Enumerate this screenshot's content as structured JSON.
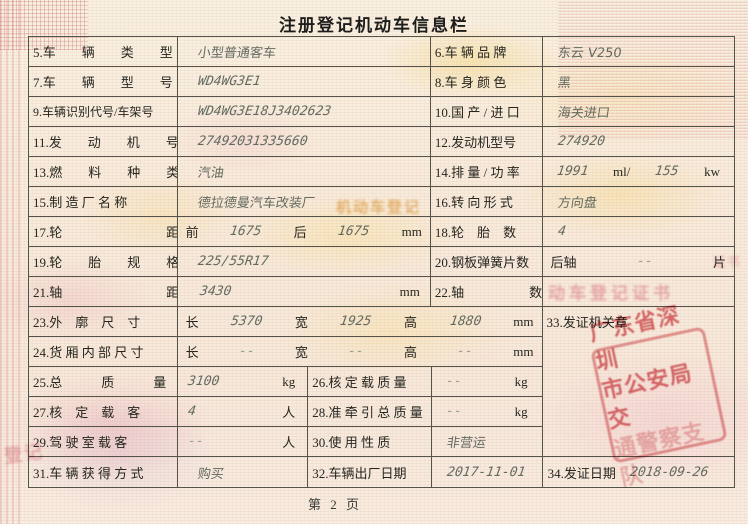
{
  "title": "注册登记机动车信息栏",
  "footer": {
    "page": "第 2 页"
  },
  "colors": {
    "stamp_red": "#d3565e",
    "paper_cream": "#f7ecdb",
    "table_line": "#54534a"
  },
  "fields": {
    "f5": {
      "label": "5.车　　辆　　类　　型",
      "value": "小型普通客车"
    },
    "f6": {
      "label": "6.车 辆 品 牌",
      "value": "东云 V250"
    },
    "f7": {
      "label": "7.车　　辆　　型　　号",
      "value": "WD4WG3E1"
    },
    "f8": {
      "label": "8.车 身 颜 色",
      "value": "黑"
    },
    "f9": {
      "label": "9.车辆识别代号/车架号",
      "value": "WD4WG3E18J3402623"
    },
    "f10": {
      "label": "10.国 产 / 进 口",
      "value": "海关进口"
    },
    "f11": {
      "label": "11.发　　动　　机　　号",
      "value": "27492031335660"
    },
    "f12": {
      "label": "12.发动机型号",
      "value": "274920"
    },
    "f13": {
      "label": "13.燃　　料　　种　　类",
      "value": "汽油"
    },
    "f14": {
      "label": "14.排 量 / 功 率",
      "v1": "1991",
      "u1": "ml/",
      "v2": "155",
      "u2": "kw"
    },
    "f15": {
      "label": "15.制 造 厂 名 称",
      "value": "德拉德曼汽车改装厂"
    },
    "f16": {
      "label": "16.转 向 形 式",
      "value": "方向盘"
    },
    "f17": {
      "label": "17.轮　　　　　　　　距",
      "pre": "前",
      "v1": "1675",
      "mid": "后",
      "v2": "1675",
      "unit": "mm"
    },
    "f18": {
      "label": "18.轮　胎　数",
      "value": "4"
    },
    "f19": {
      "label": "19.轮　　胎　　规　　格",
      "value": "225/55R17"
    },
    "f20": {
      "label": "20.钢板弹簧片数",
      "pre": "后轴",
      "dash": "--",
      "unit": "片"
    },
    "f21": {
      "label": "21.轴　　　　　　　　距",
      "value": "3430",
      "unit": "mm"
    },
    "f22": {
      "label": "22.轴　　　　　数",
      "value": ""
    },
    "f23": {
      "label": "23.外　廓　尺　寸",
      "l1": "长",
      "v1": "5370",
      "l2": "宽",
      "v2": "1925",
      "l3": "高",
      "v3": "1880",
      "unit": "mm"
    },
    "f24": {
      "label": "24.货 厢 内 部 尺 寸",
      "l1": "长",
      "d1": "--",
      "l2": "宽",
      "d2": "--",
      "l3": "高",
      "d3": "--",
      "unit": "mm"
    },
    "f25": {
      "label": "25.总　　　质　　　量",
      "value": "3100",
      "unit": "kg"
    },
    "f26": {
      "label": "26.核 定 载 质 量",
      "value": "--",
      "unit": "kg"
    },
    "f27": {
      "label": "27.核　定　载　客",
      "value": "4",
      "unit": "人"
    },
    "f28": {
      "label": "28.准 牵 引 总 质 量",
      "value": "--",
      "unit": "kg"
    },
    "f29": {
      "label": "29.驾 驶 室 载 客",
      "value": "--",
      "unit": "人"
    },
    "f30": {
      "label": "30.使 用 性 质",
      "value": "非营运"
    },
    "f31": {
      "label": "31.车 辆 获 得 方 式",
      "value": "购买"
    },
    "f32": {
      "label": "32.车辆出厂日期",
      "value": "2017-11-01"
    },
    "f33": {
      "label": "33.发证机关章"
    },
    "f34": {
      "label": "34.发证日期",
      "value": "2018-09-26"
    }
  },
  "stamp": {
    "line1": "广东省深圳",
    "line2": "市公安局交",
    "line3": "通警察支队"
  },
  "watermarks": {
    "orange": "机动车登记",
    "pink1": "动车登记证书",
    "pink2": "证书",
    "pink3": "登记"
  }
}
